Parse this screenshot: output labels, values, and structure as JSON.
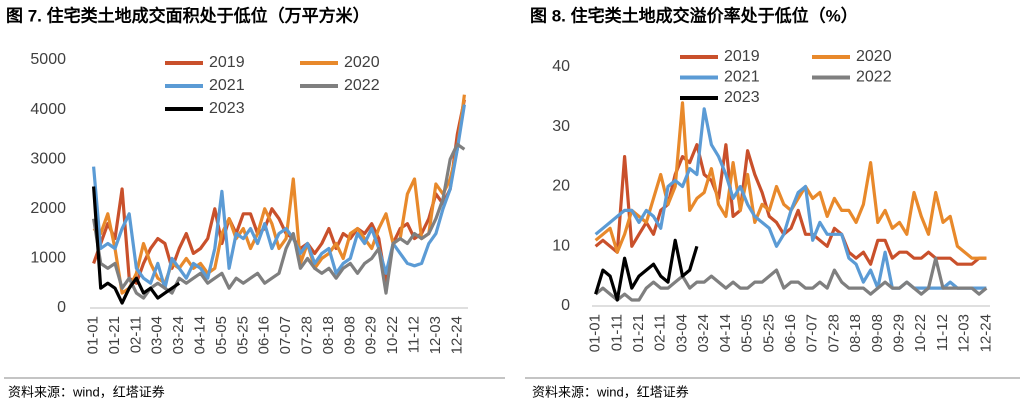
{
  "chart_data": [
    {
      "type": "line",
      "title": "图 7. 住宅类土地成交面积处于低位（万平方米）",
      "source": "资料来源：wind，红塔证券",
      "categories": [
        "01-01",
        null,
        null,
        "01-21",
        null,
        null,
        "02-11",
        null,
        null,
        "03-04",
        null,
        null,
        "03-24",
        null,
        null,
        "04-14",
        null,
        null,
        "05-05",
        null,
        null,
        "05-25",
        null,
        null,
        "06-16",
        null,
        null,
        "07-07",
        null,
        null,
        "07-28",
        null,
        null,
        "08-18",
        null,
        null,
        "09-08",
        null,
        null,
        "09-29",
        null,
        null,
        "10-22",
        null,
        null,
        "11-12",
        null,
        null,
        "12-03",
        null,
        null,
        "12-24",
        null
      ],
      "ylim": [
        0,
        5000
      ],
      "yticks": [
        0,
        1000,
        2000,
        3000,
        4000,
        5000
      ],
      "grid": false,
      "series": [
        {
          "name": "2019",
          "color": "#c9502b",
          "values": [
            900,
            1300,
            1700,
            1400,
            2400,
            600,
            500,
            900,
            1200,
            1400,
            1300,
            800,
            1200,
            1500,
            1100,
            1200,
            1400,
            2000,
            1300,
            1800,
            1500,
            1900,
            1900,
            1500,
            1600,
            2000,
            1800,
            1500,
            1400,
            1200,
            1300,
            1100,
            1300,
            1600,
            1200,
            1500,
            1400,
            1600,
            1500,
            1700,
            1400,
            500,
            1300,
            1600,
            1700,
            1400,
            1500,
            1800,
            2300,
            2100,
            2400,
            3500,
            4200
          ]
        },
        {
          "name": "2020",
          "color": "#e8892b",
          "values": [
            1600,
            1500,
            1900,
            1200,
            300,
            400,
            700,
            1300,
            900,
            600,
            500,
            900,
            800,
            1000,
            800,
            900,
            700,
            800,
            1500,
            1800,
            1400,
            1600,
            1200,
            1500,
            2000,
            1700,
            1200,
            1400,
            2600,
            900,
            1300,
            800,
            1000,
            1100,
            1300,
            1000,
            1500,
            1600,
            1400,
            1200,
            1600,
            1900,
            1300,
            1400,
            2300,
            2600,
            1400,
            1500,
            2500,
            2300,
            2600,
            3200,
            4300
          ]
        },
        {
          "name": "2021",
          "color": "#5b9bd5",
          "values": [
            2850,
            1200,
            1300,
            1200,
            1600,
            1900,
            800,
            600,
            500,
            900,
            400,
            1000,
            800,
            600,
            900,
            800,
            600,
            1200,
            2350,
            800,
            1500,
            1400,
            1600,
            1300,
            1700,
            1200,
            1500,
            1600,
            1400,
            1100,
            1300,
            900,
            1100,
            1200,
            700,
            900,
            1000,
            1500,
            1300,
            1600,
            1200,
            700,
            1300,
            1100,
            900,
            850,
            900,
            1300,
            1500,
            2000,
            2400,
            3200,
            4100
          ]
        },
        {
          "name": "2022",
          "color": "#7f7f7f",
          "values": [
            1800,
            900,
            800,
            900,
            400,
            600,
            300,
            200,
            400,
            500,
            400,
            300,
            600,
            500,
            600,
            700,
            500,
            600,
            700,
            400,
            600,
            500,
            600,
            700,
            500,
            600,
            700,
            1200,
            1500,
            800,
            1000,
            800,
            700,
            800,
            600,
            800,
            900,
            700,
            900,
            1000,
            1200,
            300,
            1300,
            1400,
            1300,
            1500,
            1400,
            1500,
            1800,
            2200,
            3000,
            3300,
            3200
          ]
        },
        {
          "name": "2023",
          "color": "#000000",
          "values": [
            2450,
            400,
            500,
            400,
            100,
            400,
            600,
            300,
            400,
            200,
            300,
            400,
            500,
            null,
            null,
            null,
            null,
            null,
            null,
            null,
            null,
            null,
            null,
            null,
            null,
            null,
            null,
            null,
            null,
            null,
            null,
            null,
            null,
            null,
            null,
            null,
            null,
            null,
            null,
            null,
            null,
            null,
            null,
            null,
            null,
            null,
            null,
            null,
            null,
            null,
            null,
            null,
            null
          ]
        }
      ]
    },
    {
      "type": "line",
      "title": "图 8. 住宅类土地成交溢价率处于低位（%）",
      "source": "资料来源：wind，红塔证券",
      "categories": [
        "01-01",
        null,
        null,
        "01-11",
        null,
        null,
        "01-21",
        null,
        null,
        "02-11",
        null,
        null,
        "03-04",
        null,
        null,
        "03-24",
        null,
        null,
        "04-14",
        null,
        null,
        "05-05",
        null,
        null,
        "05-25",
        null,
        null,
        "06-16",
        null,
        null,
        "07-07",
        null,
        null,
        "07-28",
        null,
        null,
        "08-18",
        null,
        null,
        "09-08",
        null,
        null,
        "09-29",
        null,
        null,
        "10-22",
        null,
        null,
        "11-12",
        null,
        null,
        "12-03",
        null,
        null,
        "12-24"
      ],
      "ylim": [
        0,
        40
      ],
      "yticks": [
        0,
        10,
        20,
        30,
        40
      ],
      "grid": false,
      "series": [
        {
          "name": "2019",
          "color": "#c9502b",
          "values": [
            10,
            11,
            10,
            9,
            25,
            10,
            12,
            14,
            12,
            16,
            17,
            22,
            25,
            24,
            27,
            22,
            21,
            18,
            27,
            15,
            16,
            26,
            22,
            19,
            15,
            14,
            12,
            13,
            16,
            12,
            12,
            11,
            10,
            13,
            12,
            9,
            8,
            9,
            7,
            11,
            11,
            8,
            9,
            9,
            8,
            8,
            9,
            8,
            8,
            8,
            7,
            7,
            7,
            8,
            8
          ]
        },
        {
          "name": "2020",
          "color": "#e8892b",
          "values": [
            11,
            12,
            13,
            9,
            12,
            16,
            15,
            14,
            18,
            22,
            17,
            20,
            34,
            16,
            18,
            19,
            23,
            17,
            15,
            24,
            16,
            22,
            14,
            17,
            16,
            20,
            17,
            16,
            18,
            20,
            18,
            19,
            15,
            18,
            16,
            16,
            14,
            17,
            24,
            14,
            16,
            13,
            14,
            12,
            19,
            15,
            12,
            19,
            14,
            15,
            10,
            9,
            8,
            8,
            8
          ]
        },
        {
          "name": "2021",
          "color": "#5b9bd5",
          "values": [
            12,
            13,
            14,
            15,
            16,
            16,
            14,
            16,
            15,
            13,
            20,
            21,
            20,
            23,
            22,
            33,
            27,
            25,
            22,
            18,
            20,
            17,
            15,
            14,
            13,
            10,
            12,
            16,
            19,
            20,
            11,
            14,
            12,
            12,
            12,
            8,
            7,
            4,
            6,
            3,
            9,
            3,
            3,
            4,
            3,
            3,
            3,
            3,
            3,
            4,
            3,
            3,
            3,
            3,
            3
          ]
        },
        {
          "name": "2022",
          "color": "#7f7f7f",
          "values": [
            2,
            3,
            2,
            1,
            2,
            1,
            1,
            3,
            4,
            3,
            3,
            4,
            5,
            3,
            4,
            4,
            5,
            4,
            3,
            4,
            3,
            3,
            4,
            4,
            5,
            6,
            3,
            4,
            4,
            3,
            3,
            4,
            3,
            6,
            4,
            3,
            3,
            3,
            2,
            3,
            4,
            3,
            3,
            4,
            3,
            2,
            3,
            8,
            3,
            3,
            3,
            3,
            3,
            2,
            3
          ]
        },
        {
          "name": "2023",
          "color": "#000000",
          "values": [
            2,
            6,
            5,
            1,
            8,
            3,
            5,
            6,
            7,
            5,
            4,
            11,
            5,
            6,
            10,
            null,
            null,
            null,
            null,
            null,
            null,
            null,
            null,
            null,
            null,
            null,
            null,
            null,
            null,
            null,
            null,
            null,
            null,
            null,
            null,
            null,
            null,
            null,
            null,
            null,
            null,
            null,
            null,
            null,
            null,
            null,
            null,
            null,
            null,
            null,
            null,
            null,
            null,
            null,
            null
          ]
        }
      ]
    }
  ]
}
